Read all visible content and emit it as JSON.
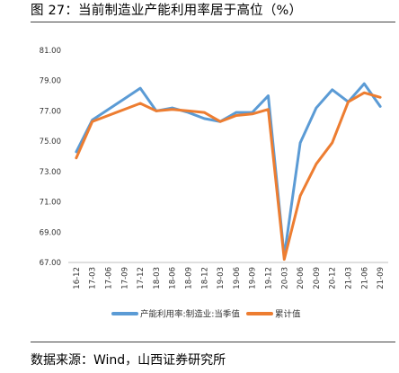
{
  "title": "图 27：当前制造业产能利用率居于高位（%）",
  "source": "数据来源：Wind，山西证券研究所",
  "colors": {
    "series1": "#5B9BD5",
    "series2": "#ED7D31"
  },
  "chart_data": {
    "type": "line",
    "title": "",
    "xlabel": "",
    "ylabel": "",
    "ylim": [
      67.0,
      81.0
    ],
    "yticks": [
      "81.00",
      "79.00",
      "77.00",
      "75.00",
      "73.00",
      "71.00",
      "69.00",
      "67.00"
    ],
    "x": [
      "16-12",
      "17-03",
      "17-06",
      "17-09",
      "17-12",
      "18-03",
      "18-06",
      "18-09",
      "18-12",
      "19-03",
      "19-06",
      "19-09",
      "19-12",
      "20-03",
      "20-06",
      "20-09",
      "20-12",
      "21-03",
      "21-06",
      "21-09"
    ],
    "grid": false,
    "legend": "bottom",
    "series": [
      {
        "name": "产能利用率:制造业:当季值",
        "color": "#5B9BD5",
        "values": [
          74.3,
          76.4,
          77.1,
          77.8,
          78.5,
          77.0,
          77.2,
          76.9,
          76.5,
          76.3,
          76.9,
          76.9,
          78.0,
          67.4,
          74.9,
          77.2,
          78.4,
          77.6,
          78.8,
          77.3
        ]
      },
      {
        "name": "累计值",
        "color": "#ED7D31",
        "values": [
          73.9,
          76.3,
          76.7,
          77.1,
          77.5,
          77.0,
          77.1,
          77.0,
          76.9,
          76.3,
          76.7,
          76.8,
          77.1,
          67.2,
          71.4,
          73.5,
          74.9,
          77.6,
          78.2,
          77.9
        ]
      }
    ]
  }
}
